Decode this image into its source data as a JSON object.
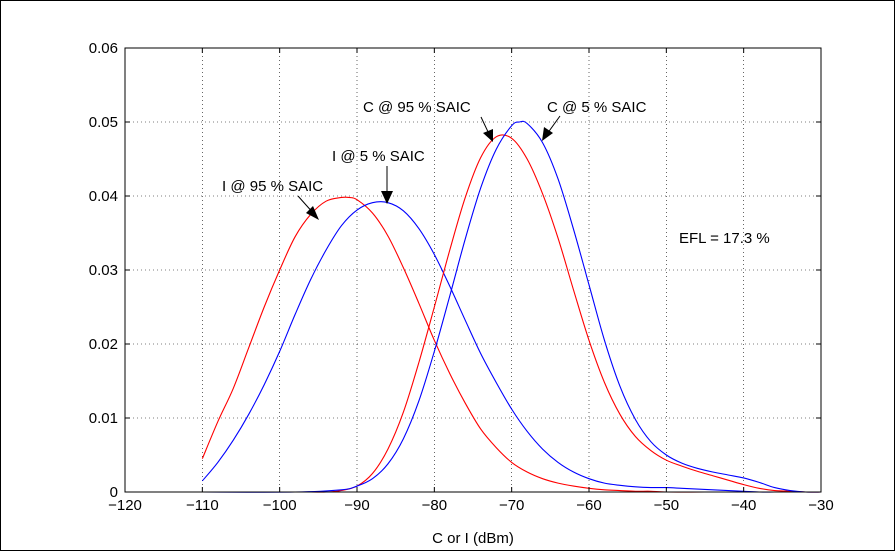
{
  "chart_data": {
    "type": "line",
    "title": "",
    "xlabel": "C or I (dBm)",
    "ylabel": "",
    "xlim": [
      -120,
      -30
    ],
    "ylim": [
      0,
      0.06
    ],
    "grid": true,
    "x_ticks": [
      -120,
      -110,
      -100,
      -90,
      -80,
      -70,
      -60,
      -50,
      -40,
      -30
    ],
    "x_tick_labels": [
      "−120",
      "−110",
      "−100",
      "−90",
      "−80",
      "−70",
      "−60",
      "−50",
      "−40",
      "−30"
    ],
    "y_ticks": [
      0,
      0.01,
      0.02,
      0.03,
      0.04,
      0.05,
      0.06
    ],
    "y_tick_labels": [
      "0",
      "0.01",
      "0.02",
      "0.03",
      "0.04",
      "0.05",
      "0.06"
    ],
    "colors": {
      "red": "#ff0000",
      "blue": "#0000ff"
    },
    "series": [
      {
        "color": "#ff0000",
        "x": [
          -110,
          -108,
          -106,
          -104,
          -102,
          -100,
          -98,
          -96,
          -94,
          -92,
          -91,
          -90,
          -88,
          -86,
          -84,
          -82,
          -80,
          -78,
          -76,
          -74,
          -72,
          -70,
          -68,
          -66,
          -64,
          -62,
          -60,
          -58,
          -56,
          -54,
          -52,
          -50,
          -45,
          -40,
          -35,
          -30
        ],
        "y": [
          0.0045,
          0.0095,
          0.014,
          0.0195,
          0.025,
          0.03,
          0.0345,
          0.0375,
          0.0393,
          0.0398,
          0.0398,
          0.0395,
          0.0377,
          0.0346,
          0.0303,
          0.0255,
          0.0205,
          0.016,
          0.012,
          0.0085,
          0.006,
          0.004,
          0.0027,
          0.0018,
          0.0012,
          0.0008,
          0.0005,
          0.0003,
          0.0002,
          0.0001,
          0.0001,
          0.0,
          0.0,
          0.0,
          0.0,
          0.0
        ]
      },
      {
        "color": "#0000ff",
        "x": [
          -110,
          -108,
          -106,
          -104,
          -102,
          -100,
          -98,
          -96,
          -94,
          -92,
          -90,
          -88,
          -86,
          -84,
          -82,
          -80,
          -78,
          -76,
          -74,
          -72,
          -70,
          -68,
          -66,
          -64,
          -62,
          -60,
          -58,
          -56,
          -54,
          -52,
          -50,
          -48,
          -46,
          -44,
          -42,
          -40,
          -38,
          -36,
          -34,
          -32
        ],
        "y": [
          0.0015,
          0.004,
          0.007,
          0.0105,
          0.0145,
          0.019,
          0.024,
          0.0287,
          0.0327,
          0.036,
          0.0381,
          0.0391,
          0.0391,
          0.038,
          0.0356,
          0.0321,
          0.0278,
          0.0232,
          0.0187,
          0.0148,
          0.0112,
          0.0082,
          0.0058,
          0.004,
          0.0027,
          0.0018,
          0.0012,
          0.0009,
          0.0007,
          0.0006,
          0.0006,
          0.0005,
          0.0004,
          0.0003,
          0.0002,
          0.0001,
          0.0,
          0.0,
          0.0,
          0.0
        ]
      },
      {
        "color": "#ff0000",
        "x": [
          -110,
          -100,
          -96,
          -94,
          -92,
          -90,
          -88,
          -86,
          -84,
          -82,
          -80,
          -78,
          -76,
          -74,
          -72,
          -70,
          -68,
          -66,
          -64,
          -62,
          -60,
          -58,
          -56,
          -54,
          -52,
          -50,
          -48,
          -46,
          -44,
          -42,
          -40,
          -38,
          -36,
          -34,
          -32,
          -30
        ],
        "y": [
          0.0,
          0.0,
          0.0,
          0.0,
          0.0002,
          0.0008,
          0.0025,
          0.0058,
          0.0108,
          0.0175,
          0.025,
          0.0327,
          0.0398,
          0.0452,
          0.048,
          0.0478,
          0.045,
          0.0403,
          0.0343,
          0.0273,
          0.0205,
          0.0148,
          0.0105,
          0.0075,
          0.0056,
          0.0043,
          0.0035,
          0.0028,
          0.0022,
          0.0016,
          0.001,
          0.0005,
          0.0002,
          0.0001,
          0.0,
          0.0
        ]
      },
      {
        "color": "#0000ff",
        "x": [
          -110,
          -98,
          -92,
          -90,
          -88,
          -86,
          -84,
          -82,
          -80,
          -78,
          -76,
          -74,
          -72,
          -70,
          -69,
          -68,
          -66,
          -64,
          -62,
          -60,
          -58,
          -56,
          -54,
          -52,
          -50,
          -48,
          -46,
          -44,
          -42,
          -40,
          -38,
          -36,
          -34,
          -32,
          -30
        ],
        "y": [
          0.0,
          0.0,
          0.0003,
          0.0008,
          0.0018,
          0.0038,
          0.0072,
          0.0123,
          0.019,
          0.0265,
          0.0342,
          0.0411,
          0.0463,
          0.0495,
          0.05,
          0.0498,
          0.0472,
          0.0423,
          0.0355,
          0.028,
          0.0205,
          0.0143,
          0.0098,
          0.0068,
          0.005,
          0.0039,
          0.0032,
          0.0027,
          0.0023,
          0.0019,
          0.0013,
          0.0006,
          0.0002,
          0.0,
          0.0
        ]
      }
    ],
    "annotations": [
      {
        "text": "I @ 95 % SAIC",
        "x": -91,
        "y": 0.0398
      },
      {
        "text": "I @ 5 % SAIC",
        "x": -86,
        "y": 0.0391
      },
      {
        "text": "C @ 95 % SAIC",
        "x": -72,
        "y": 0.048
      },
      {
        "text": "C @ 5 % SAIC",
        "x": -68,
        "y": 0.05
      }
    ],
    "efl_label": "EFL = 17.3 %"
  }
}
